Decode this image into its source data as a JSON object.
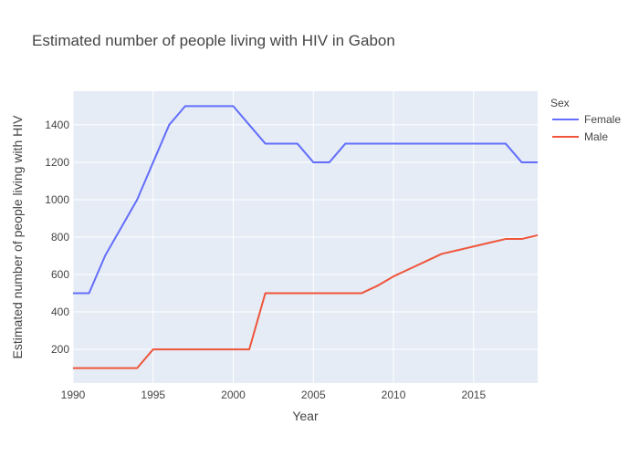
{
  "chart_data": {
    "type": "line",
    "title": "Estimated number of people living with HIV in Gabon",
    "xlabel": "Year",
    "ylabel": "Estimated number of people living with HIV",
    "xlim": [
      1990,
      2019
    ],
    "ylim": [
      20,
      1580
    ],
    "x_ticks": [
      1990,
      1995,
      2000,
      2005,
      2010,
      2015
    ],
    "y_ticks": [
      200,
      400,
      600,
      800,
      1000,
      1200,
      1400
    ],
    "grid": true,
    "legend": {
      "title": "Sex",
      "position": "top-right"
    },
    "x": [
      1990,
      1991,
      1992,
      1993,
      1994,
      1995,
      1996,
      1997,
      1998,
      1999,
      2000,
      2001,
      2002,
      2003,
      2004,
      2005,
      2006,
      2007,
      2008,
      2009,
      2010,
      2011,
      2012,
      2013,
      2014,
      2015,
      2016,
      2017,
      2018,
      2019
    ],
    "series": [
      {
        "name": "Female",
        "color": "#636efa",
        "values": [
          500,
          500,
          700,
          850,
          1000,
          1200,
          1400,
          1500,
          1500,
          1500,
          1500,
          1400,
          1300,
          1300,
          1300,
          1200,
          1200,
          1300,
          1300,
          1300,
          1300,
          1300,
          1300,
          1300,
          1300,
          1300,
          1300,
          1300,
          1200,
          1200
        ]
      },
      {
        "name": "Male",
        "color": "#ef553b",
        "values": [
          100,
          100,
          100,
          100,
          100,
          200,
          200,
          200,
          200,
          200,
          200,
          200,
          500,
          500,
          500,
          500,
          500,
          500,
          500,
          540,
          590,
          630,
          670,
          710,
          730,
          750,
          770,
          790,
          790,
          810
        ]
      }
    ],
    "plot_bg": "#e5ecf6"
  }
}
